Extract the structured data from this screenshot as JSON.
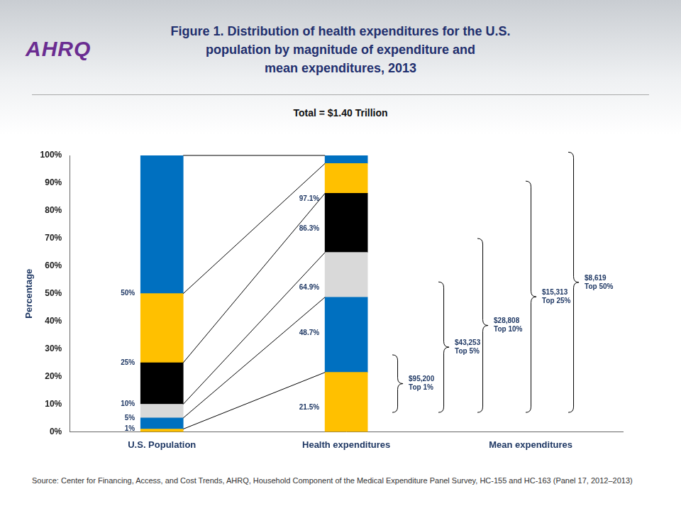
{
  "chart_data": {
    "type": "bar",
    "logo": "AHRQ",
    "title": [
      "Figure 1. Distribution of health expenditures for the U.S.",
      "population by magnitude of expenditure and",
      "mean expenditures, 2013"
    ],
    "subtitle": "Total = $1.40 Trillion",
    "y_label": "Percentage",
    "categories": [
      "U.S. Population",
      "Health expenditures",
      "Mean expenditures"
    ],
    "stacked": true,
    "grid": false,
    "series": [
      {
        "color": "#FFC000",
        "values": [
          1,
          21.5,
          null
        ]
      },
      {
        "color": "#0070C0",
        "values": [
          4,
          27.2,
          null
        ]
      },
      {
        "color": "#D9D9D9",
        "values": [
          5,
          16.2,
          null
        ]
      },
      {
        "color": "#000000",
        "values": [
          15,
          21.4,
          null
        ]
      },
      {
        "color": "#FFC000",
        "values": [
          25,
          10.8,
          null
        ]
      },
      {
        "color": "#0070C0",
        "values": [
          50,
          2.9,
          null
        ]
      }
    ],
    "boundary_labels": [
      [
        {
          "value": 1,
          "label": "1%"
        },
        {
          "value": 5,
          "label": "5%"
        },
        {
          "value": 10,
          "label": "10%"
        },
        {
          "value": 25,
          "label": "25%"
        },
        {
          "value": 50,
          "label": "50%"
        }
      ],
      [
        {
          "value": 21.5,
          "label": "21.5%"
        },
        {
          "value": 48.7,
          "label": "48.7%"
        },
        {
          "value": 64.9,
          "label": "64.9%"
        },
        {
          "value": 86.3,
          "label": "86.3%"
        },
        {
          "value": 97.1,
          "label": "97.1%"
        }
      ]
    ],
    "mean_expenditures": {
      "groups": [
        "Top 1%",
        "Top 5%",
        "Top 10%",
        "Top 25%",
        "Top 50%"
      ],
      "values": [
        95200,
        43253,
        28808,
        15313,
        8619
      ],
      "value_labels": [
        "$95,200",
        "$43,253",
        "$28,808",
        "$15,313",
        "$8,619"
      ]
    },
    "ylim": [
      0,
      100
    ],
    "yticks": [
      {
        "value": 0,
        "label": "0%"
      },
      {
        "value": 10,
        "label": "10%"
      },
      {
        "value": 20,
        "label": "20%"
      },
      {
        "value": 30,
        "label": "30%"
      },
      {
        "value": 40,
        "label": "40%"
      },
      {
        "value": 50,
        "label": "50%"
      },
      {
        "value": 60,
        "label": "60%"
      },
      {
        "value": 70,
        "label": "70%"
      },
      {
        "value": 80,
        "label": "80%"
      },
      {
        "value": 90,
        "label": "90%"
      },
      {
        "value": 100,
        "label": "100%"
      }
    ],
    "source": "Source: Center for Financing, Access, and Cost Trends, AHRQ, Household Component of the Medical Expenditure Panel Survey, HC-155 and HC-163 (Panel 17, 2012–2013)"
  }
}
